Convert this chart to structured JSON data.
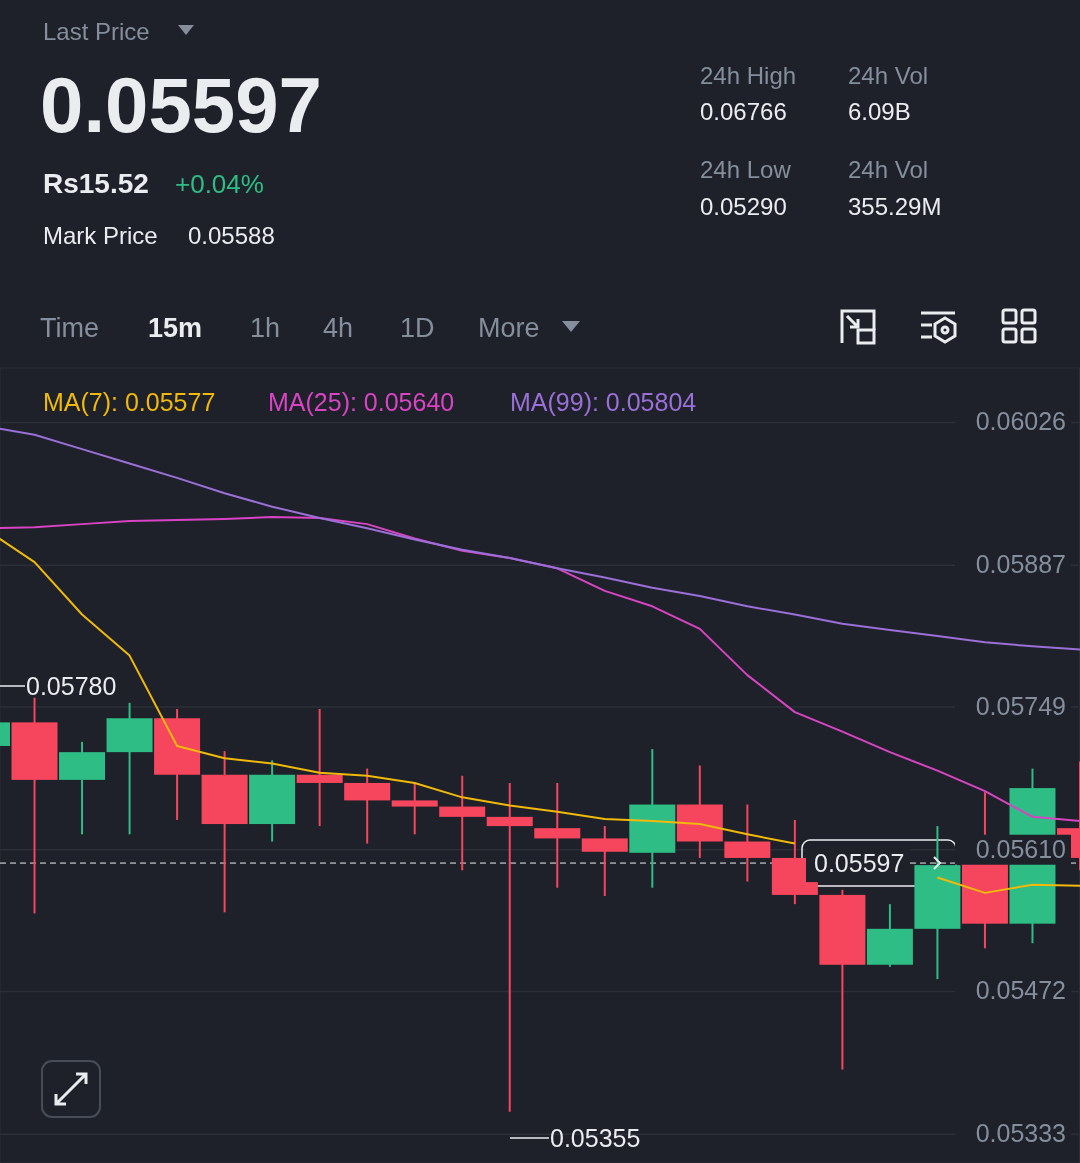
{
  "chart_data": {
    "type": "candlestick",
    "categories": [
      null,
      null,
      null,
      null,
      null,
      null,
      null,
      null,
      null,
      null,
      null,
      null,
      null,
      null,
      null,
      null,
      null,
      null,
      null,
      null,
      null,
      null,
      null,
      null
    ],
    "ohlc": [
      [
        0.05711,
        0.0574,
        0.05705,
        0.05734
      ],
      [
        0.05734,
        0.05758,
        0.05548,
        0.05678
      ],
      [
        0.05678,
        0.05715,
        0.05625,
        0.05705
      ],
      [
        0.05705,
        0.05753,
        0.05625,
        0.05738
      ],
      [
        0.05738,
        0.05747,
        0.05639,
        0.05683
      ],
      [
        0.05683,
        0.05706,
        0.05549,
        0.05635
      ],
      [
        0.05635,
        0.05697,
        0.05618,
        0.05683
      ],
      [
        0.05683,
        0.05747,
        0.05633,
        0.05675
      ],
      [
        0.05675,
        0.05689,
        0.05616,
        0.05658
      ],
      [
        0.05658,
        0.05675,
        0.05625,
        0.05652
      ],
      [
        0.05652,
        0.05682,
        0.0559,
        0.05642
      ],
      [
        0.05642,
        0.05675,
        0.05355,
        0.05633
      ],
      [
        0.05631,
        0.05675,
        0.05573,
        0.05621
      ],
      [
        0.05621,
        0.05633,
        0.05565,
        0.05608
      ],
      [
        0.05607,
        0.05708,
        0.05573,
        0.05654
      ],
      [
        0.05654,
        0.05692,
        0.05602,
        0.05618
      ],
      [
        0.05618,
        0.05654,
        0.05579,
        0.05602
      ],
      [
        0.05602,
        0.05639,
        0.05557,
        0.05566
      ],
      [
        0.05566,
        0.05571,
        0.05396,
        0.05498
      ],
      [
        0.05498,
        0.05557,
        0.05496,
        0.05533
      ],
      [
        0.05533,
        0.05633,
        0.05484,
        0.05595
      ],
      [
        0.05612,
        0.05666,
        0.05514,
        0.05538
      ],
      [
        0.05538,
        0.05689,
        0.05519,
        0.0567
      ],
      [
        0.05631,
        0.05696,
        0.0559,
        0.05602
      ]
    ],
    "colors": [
      "#2ebd85",
      "#f6465d",
      "#2ebd85",
      "#2ebd85",
      "#f6465d",
      "#f6465d",
      "#2ebd85",
      "#f6465d",
      "#f6465d",
      "#f6465d",
      "#f6465d",
      "#f6465d",
      "#f6465d",
      "#f6465d",
      "#2ebd85",
      "#f6465d",
      "#f6465d",
      "#f6465d",
      "#f6465d",
      "#2ebd85",
      "#2ebd85",
      "#f6465d",
      "#2ebd85",
      "#f6465d"
    ],
    "series": [
      {
        "name": "MA(7): 0.05577",
        "type": "line",
        "color": "#f0b90b",
        "values": [
          0.05921,
          0.0589,
          0.05839,
          0.05799,
          0.05711,
          0.05699,
          0.05694,
          0.05685,
          0.05682,
          0.05675,
          0.05661,
          0.05653,
          0.05647,
          0.0564,
          0.05638,
          0.05635,
          0.05625,
          0.05616,
          null,
          null,
          0.05583,
          0.05568,
          0.05576,
          0.05575
        ]
      },
      {
        "name": "MA(25): 0.05640",
        "type": "line",
        "color": "#d844c4",
        "values": [
          0.05923,
          0.05924,
          0.05927,
          0.0593,
          0.05931,
          0.05932,
          0.05934,
          0.05933,
          0.05927,
          0.05913,
          0.05901,
          0.05894,
          0.05884,
          0.05862,
          0.05847,
          0.05825,
          0.0578,
          0.05744,
          0.05725,
          0.05705,
          0.05687,
          0.05667,
          0.05642,
          0.05638
        ]
      },
      {
        "name": "MA(99): 0.05804",
        "type": "line",
        "color": "#9b6fd8",
        "values": [
          0.06022,
          0.06014,
          0.06,
          0.05986,
          0.05972,
          0.05957,
          0.05944,
          0.05933,
          0.05923,
          0.05912,
          0.05902,
          0.05894,
          0.05884,
          0.05875,
          0.05865,
          0.05857,
          0.05847,
          0.05839,
          0.0583,
          0.05824,
          0.05818,
          0.05812,
          0.05808,
          0.05805
        ]
      }
    ],
    "ylim": [
      0.05305,
      0.06079
    ],
    "yticks": [
      0.06026,
      0.05887,
      0.05749,
      {
        "value": 0.0561,
        "label": "0.05610"
      },
      0.05472,
      0.05333
    ],
    "grid": "y",
    "legend": "top left",
    "tick_labels": "y",
    "ref_lines": [
      {
        "axis": "y",
        "value": 0.05597,
        "label": "0.05597",
        "color": "#eaecef",
        "line_style": "dashed"
      }
    ],
    "annotations": [
      "Last Price",
      "0.05597",
      "Rs15.52",
      "+0.04%",
      "Mark Price",
      "0.05588",
      "24h High",
      "0.06766",
      "24h Vol",
      "6.09B",
      "24h Low",
      "0.05290",
      "24h Vol",
      "355.29M",
      "Time",
      "15m",
      "1h",
      "4h",
      "1D",
      "More",
      "0.05780",
      "0.05355"
    ]
  }
}
